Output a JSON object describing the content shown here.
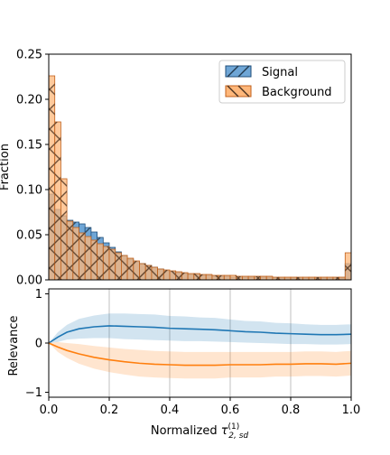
{
  "chart_data": [
    {
      "type": "histogram",
      "ylabel": "Fraction",
      "ylim": [
        0,
        0.25
      ],
      "xlim": [
        0,
        1
      ],
      "yticks": [
        "0.00",
        "0.05",
        "0.10",
        "0.15",
        "0.20",
        "0.25"
      ],
      "bin_width": 0.02,
      "grid": false,
      "legend_placement": "top-right",
      "series": [
        {
          "name": "Signal",
          "color": "#6fa6d6",
          "edge_color": "#1f4e7a",
          "hatch": "single diagonal",
          "values": [
            0.095,
            0.078,
            0.071,
            0.066,
            0.064,
            0.062,
            0.058,
            0.053,
            0.047,
            0.041,
            0.036,
            0.031,
            0.027,
            0.023,
            0.02,
            0.018,
            0.016,
            0.014,
            0.012,
            0.01,
            0.009,
            0.008,
            0.007,
            0.006,
            0.006,
            0.005,
            0.005,
            0.004,
            0.004,
            0.004,
            0.003,
            0.003,
            0.003,
            0.003,
            0.003,
            0.003,
            0.003,
            0.002,
            0.002,
            0.002,
            0.002,
            0.002,
            0.002,
            0.002,
            0.002,
            0.002,
            0.002,
            0.002,
            0.002,
            0.018
          ]
        },
        {
          "name": "Background",
          "color": "#ffb77a",
          "edge_color": "#c0611c",
          "hatch": "cross diagonal",
          "values": [
            0.226,
            0.175,
            0.112,
            0.065,
            0.058,
            0.052,
            0.048,
            0.044,
            0.04,
            0.037,
            0.034,
            0.03,
            0.027,
            0.024,
            0.021,
            0.018,
            0.016,
            0.014,
            0.012,
            0.011,
            0.01,
            0.009,
            0.008,
            0.007,
            0.007,
            0.006,
            0.006,
            0.005,
            0.005,
            0.005,
            0.005,
            0.004,
            0.004,
            0.004,
            0.004,
            0.004,
            0.004,
            0.003,
            0.003,
            0.003,
            0.003,
            0.003,
            0.003,
            0.003,
            0.003,
            0.003,
            0.003,
            0.003,
            0.003,
            0.03
          ]
        }
      ]
    },
    {
      "type": "line",
      "ylabel": "Relevance",
      "xlabel_prefix": "Normalized ",
      "xlabel_symbol": "τ",
      "xlabel_sub": "2, sd",
      "xlabel_sup": "(1)",
      "xlim": [
        0,
        1
      ],
      "ylim": [
        -1.1,
        1.1
      ],
      "xticks": [
        "0.0",
        "0.2",
        "0.4",
        "0.6",
        "0.8",
        "1.0"
      ],
      "yticks": [
        "−1",
        "0",
        "1"
      ],
      "grid": "vertical",
      "series": [
        {
          "name": "Signal",
          "color": "#1f77b4",
          "x": [
            0.0,
            0.03,
            0.06,
            0.1,
            0.15,
            0.2,
            0.25,
            0.3,
            0.35,
            0.4,
            0.45,
            0.5,
            0.55,
            0.6,
            0.65,
            0.7,
            0.75,
            0.8,
            0.85,
            0.9,
            0.95,
            1.0
          ],
          "y": [
            0.0,
            0.12,
            0.22,
            0.29,
            0.33,
            0.35,
            0.34,
            0.33,
            0.32,
            0.3,
            0.29,
            0.28,
            0.27,
            0.25,
            0.23,
            0.22,
            0.2,
            0.19,
            0.18,
            0.17,
            0.17,
            0.18
          ],
          "band_width": [
            0.0,
            0.1,
            0.15,
            0.2,
            0.23,
            0.25,
            0.26,
            0.26,
            0.26,
            0.25,
            0.25,
            0.24,
            0.24,
            0.23,
            0.22,
            0.22,
            0.21,
            0.21,
            0.2,
            0.2,
            0.2,
            0.2
          ]
        },
        {
          "name": "Background",
          "color": "#ff7f0e",
          "x": [
            0.0,
            0.03,
            0.06,
            0.1,
            0.15,
            0.2,
            0.25,
            0.3,
            0.35,
            0.4,
            0.45,
            0.5,
            0.55,
            0.6,
            0.65,
            0.7,
            0.75,
            0.8,
            0.85,
            0.9,
            0.95,
            1.0
          ],
          "y": [
            0.0,
            -0.08,
            -0.15,
            -0.22,
            -0.29,
            -0.34,
            -0.38,
            -0.41,
            -0.43,
            -0.44,
            -0.45,
            -0.45,
            -0.45,
            -0.44,
            -0.44,
            -0.44,
            -0.43,
            -0.43,
            -0.42,
            -0.42,
            -0.43,
            -0.41
          ],
          "band_width": [
            0.0,
            0.1,
            0.15,
            0.2,
            0.23,
            0.25,
            0.26,
            0.27,
            0.27,
            0.27,
            0.27,
            0.27,
            0.27,
            0.26,
            0.26,
            0.26,
            0.25,
            0.25,
            0.25,
            0.25,
            0.25,
            0.25
          ]
        }
      ]
    }
  ]
}
